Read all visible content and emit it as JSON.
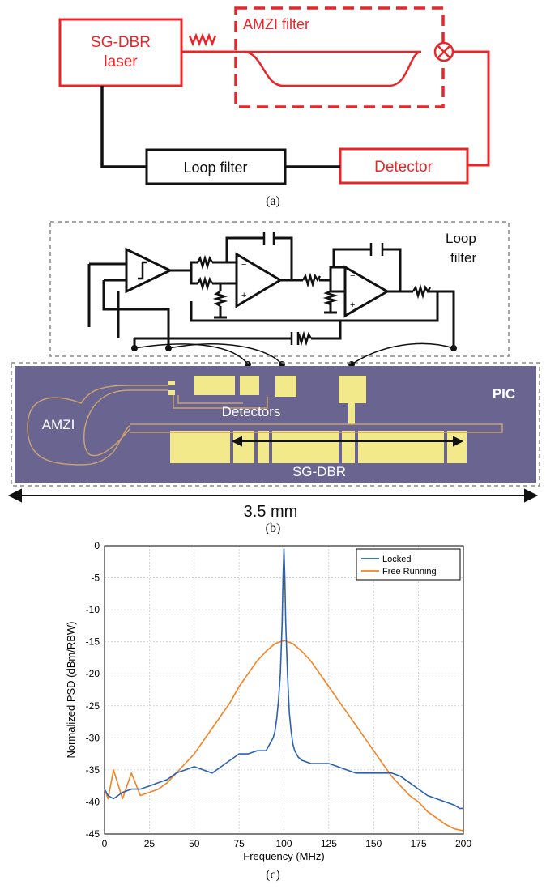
{
  "panel_a": {
    "laser_line1": "SG-DBR",
    "laser_line2": "laser",
    "amzi_label": "AMZI filter",
    "loop_filter_label": "Loop filter",
    "detector_label": "Detector",
    "caption": "(a)"
  },
  "panel_b": {
    "loop_filter_line1": "Loop",
    "loop_filter_line2": "filter",
    "pic_label": "PIC",
    "amzi_label": "AMZI",
    "detectors_label": "Detectors",
    "sgdbr_label": "SG-DBR",
    "scale_label": "3.5 mm",
    "caption": "(b)"
  },
  "panel_c": {
    "caption": "(c)"
  },
  "colors": {
    "red": "#e8262a",
    "locked": "#2b62b0",
    "free_running": "#f28324",
    "chip_bg": "#6a6590",
    "gold": "#f2e98a"
  },
  "chart_data": {
    "type": "line",
    "xlabel": "Frequency (MHz)",
    "ylabel": "Normalized PSD (dBm/RBW)",
    "xlim": [
      0,
      200
    ],
    "ylim": [
      -45,
      0
    ],
    "x_ticks": [
      0,
      25,
      50,
      75,
      100,
      125,
      150,
      175,
      200
    ],
    "y_ticks": [
      0,
      -5,
      -10,
      -15,
      -20,
      -25,
      -30,
      -35,
      -40,
      -45
    ],
    "grid": true,
    "legend_position": "top-right",
    "series": [
      {
        "name": "Locked",
        "color": "#2b62b0",
        "x": [
          0,
          2,
          5,
          10,
          15,
          20,
          25,
          30,
          35,
          40,
          45,
          50,
          55,
          60,
          65,
          70,
          75,
          80,
          85,
          88,
          90,
          92,
          94,
          95,
          96,
          97,
          98,
          99,
          99.5,
          100,
          100.5,
          101,
          102,
          103,
          104,
          105,
          106,
          108,
          110,
          115,
          120,
          125,
          130,
          135,
          140,
          145,
          150,
          155,
          160,
          165,
          170,
          175,
          180,
          185,
          190,
          195,
          198,
          200
        ],
        "y": [
          -38,
          -39,
          -39.5,
          -38.5,
          -38,
          -38,
          -37.5,
          -37,
          -36.5,
          -35.5,
          -35,
          -34.5,
          -35,
          -35.5,
          -34.5,
          -33.5,
          -32.5,
          -32.5,
          -32,
          -32,
          -32,
          -31,
          -30,
          -29,
          -27,
          -24,
          -20,
          -12,
          -5,
          -0.5,
          -5,
          -12,
          -20,
          -26,
          -29,
          -31,
          -32,
          -33,
          -33.5,
          -34,
          -34,
          -34,
          -34.5,
          -35,
          -35.5,
          -35.5,
          -35.5,
          -35.5,
          -35.5,
          -36,
          -37,
          -38,
          -39,
          -39.5,
          -40,
          -40.5,
          -41,
          -41
        ]
      },
      {
        "name": "Free Running",
        "color": "#f28324",
        "x": [
          0,
          2,
          5,
          10,
          15,
          20,
          25,
          30,
          35,
          40,
          45,
          50,
          55,
          60,
          65,
          70,
          75,
          80,
          85,
          90,
          95,
          100,
          105,
          110,
          115,
          120,
          125,
          130,
          135,
          140,
          145,
          150,
          155,
          160,
          165,
          170,
          175,
          180,
          185,
          190,
          195,
          200
        ],
        "y": [
          -38,
          -39.5,
          -35,
          -39.5,
          -35.5,
          -39,
          -38.5,
          -38,
          -37,
          -35.5,
          -34,
          -32.5,
          -30.5,
          -28.5,
          -26.5,
          -24.5,
          -22,
          -20,
          -18,
          -16.5,
          -15.3,
          -14.8,
          -15.3,
          -16.5,
          -18,
          -20,
          -22,
          -24,
          -26,
          -28,
          -30,
          -32,
          -34,
          -36,
          -37.5,
          -39,
          -40,
          -41.5,
          -42.5,
          -43.5,
          -44.2,
          -44.5
        ]
      }
    ]
  }
}
